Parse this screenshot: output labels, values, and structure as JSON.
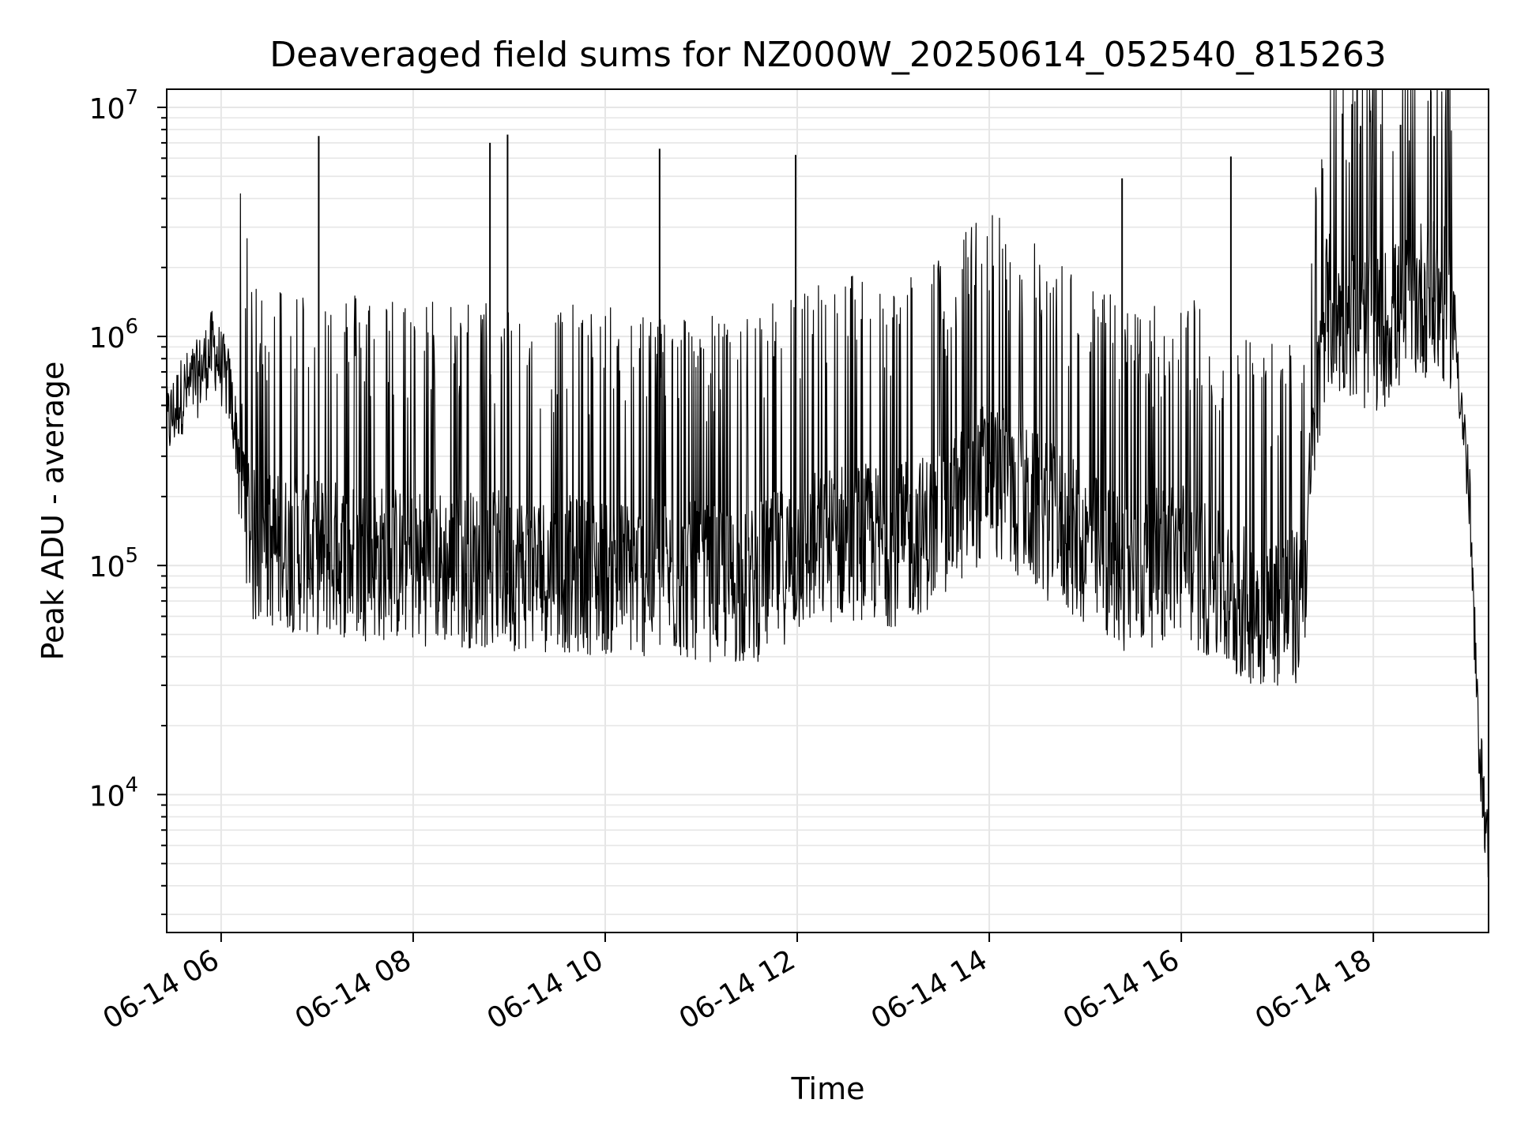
{
  "chart_data": {
    "type": "line",
    "title": "Deaveraged field sums for NZ000W_20250614_052540_815263",
    "xlabel": "Time",
    "ylabel": "Peak ADU - average",
    "yscale": "log",
    "ylim": [
      2500,
      12000000
    ],
    "xlim": [
      "2025-06-14 05:26",
      "2025-06-14 19:12"
    ],
    "x_ticks": [
      "06-14 06",
      "06-14 08",
      "06-14 10",
      "06-14 12",
      "06-14 14",
      "06-14 16",
      "06-14 18"
    ],
    "y_ticks": [
      "10^4",
      "10^5",
      "10^6",
      "10^7"
    ],
    "grid": true,
    "line_color": "#000000",
    "series": [
      {
        "x": [
          "2025-06-14 05:26",
          "2025-06-14 05:35",
          "2025-06-14 05:45",
          "2025-06-14 05:55",
          "2025-06-14 06:05",
          "2025-06-14 06:20",
          "2025-06-14 07:00",
          "2025-06-14 08:00",
          "2025-06-14 09:00",
          "2025-06-14 10:00",
          "2025-06-14 11:00",
          "2025-06-14 11:30",
          "2025-06-14 12:00",
          "2025-06-14 12:30",
          "2025-06-14 13:00",
          "2025-06-14 13:30",
          "2025-06-14 14:00",
          "2025-06-14 14:15",
          "2025-06-14 15:00",
          "2025-06-14 15:30",
          "2025-06-14 16:00",
          "2025-06-14 16:30",
          "2025-06-14 17:00",
          "2025-06-14 17:15",
          "2025-06-14 17:30",
          "2025-06-14 18:00",
          "2025-06-14 18:30",
          "2025-06-14 18:50",
          "2025-06-14 19:00",
          "2025-06-14 19:05",
          "2025-06-14 19:12"
        ],
        "values": [
          400000,
          550000,
          650000,
          900000,
          600000,
          120000,
          110000,
          100000,
          95000,
          90000,
          85000,
          80000,
          110000,
          130000,
          120000,
          150000,
          250000,
          200000,
          120000,
          90000,
          110000,
          70000,
          65000,
          65000,
          1300000,
          1000000,
          1500000,
          1300000,
          200000,
          22000,
          5000
        ]
      }
    ],
    "spikes": [
      {
        "x": "2025-06-14 07:01",
        "value": 7500000
      },
      {
        "x": "2025-06-14 08:48",
        "value": 7000000
      },
      {
        "x": "2025-06-14 08:59",
        "value": 7600000
      },
      {
        "x": "2025-06-14 10:34",
        "value": 6600000
      },
      {
        "x": "2025-06-14 11:59",
        "value": 6200000
      },
      {
        "x": "2025-06-14 15:23",
        "value": 4900000
      },
      {
        "x": "2025-06-14 16:31",
        "value": 6100000
      },
      {
        "x": "2025-06-14 17:52",
        "value": 8300000
      },
      {
        "x": "2025-06-14 18:17",
        "value": 8400000
      },
      {
        "x": "2025-06-14 18:38",
        "value": 7500000
      }
    ]
  }
}
